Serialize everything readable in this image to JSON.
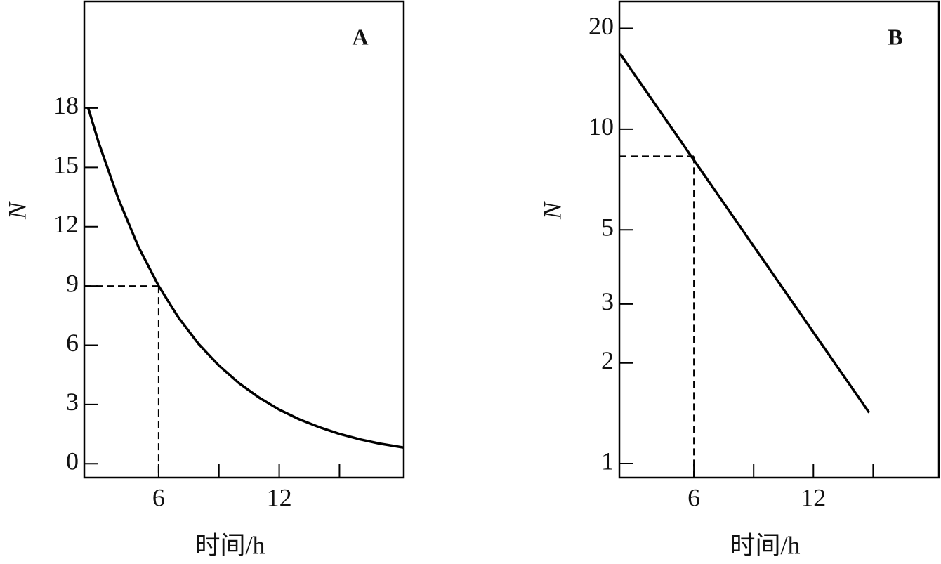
{
  "chart_data": [
    {
      "type": "line",
      "panel_label": "A",
      "xlabel": "时间/h",
      "ylabel": "N",
      "yscale": "linear",
      "x": [
        2.5,
        3,
        4,
        5,
        6,
        7,
        8,
        9,
        10,
        11,
        12,
        13,
        14,
        15,
        16,
        17,
        18.2
      ],
      "values": [
        18.0,
        16.3,
        13.4,
        10.97,
        9,
        7.38,
        6.05,
        4.97,
        4.08,
        3.35,
        2.74,
        2.25,
        1.85,
        1.51,
        1.24,
        1.02,
        0.82
      ],
      "color": "#000000",
      "xlim": [
        2.3,
        18.2
      ],
      "ylim": [
        -0.7,
        23.4
      ],
      "xticks": [
        6,
        12
      ],
      "xminor_ticks": [
        9,
        15
      ],
      "yticks": [
        0,
        3,
        6,
        9,
        12,
        15,
        18
      ],
      "reference": {
        "x": 6,
        "y": 9
      }
    },
    {
      "type": "line",
      "panel_label": "B",
      "xlabel": "时间/h",
      "ylabel": "N",
      "yscale": "log",
      "x": [
        2.3,
        14.8
      ],
      "values": [
        16.8,
        1.42
      ],
      "color": "#000000",
      "xlim": [
        2.26,
        18.3
      ],
      "ylim": [
        0.908,
        24.1
      ],
      "xticks": [
        6,
        12
      ],
      "xminor_ticks": [
        9,
        15
      ],
      "yticks": [
        1,
        2,
        3,
        5,
        10,
        20
      ],
      "reference": {
        "x": 6,
        "y": 8.3
      }
    }
  ]
}
